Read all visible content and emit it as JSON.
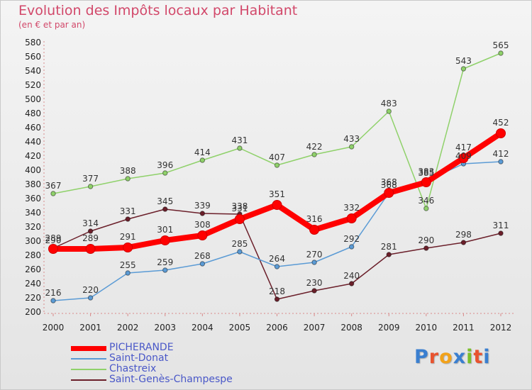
{
  "header": {
    "title": "Evolution des Impôts locaux par Habitant",
    "subtitle": "(en € et par an)"
  },
  "logo": {
    "text": "Proxiti",
    "letter_colors": [
      "#3a7fd0",
      "#e8532f",
      "#f2a21a",
      "#3a7fd0",
      "#7bbf2a",
      "#e8532f",
      "#3a7fd0"
    ]
  },
  "chart_data": {
    "type": "line",
    "title": "Evolution des Impôts locaux par Habitant",
    "subtitle": "(en € et par an)",
    "xlabel": "",
    "ylabel": "",
    "x": [
      "2000",
      "2001",
      "2002",
      "2003",
      "2004",
      "2005",
      "2006",
      "2007",
      "2008",
      "2009",
      "2010",
      "2011",
      "2012"
    ],
    "ylim": [
      200,
      580
    ],
    "ytick_step": 20,
    "grid": false,
    "legend_position": "bottom-left",
    "series": [
      {
        "name": "PICHERANDE",
        "color": "#ff0000",
        "values": [
          289,
          289,
          291,
          301,
          308,
          331,
          351,
          316,
          332,
          368,
          383,
          417,
          452
        ]
      },
      {
        "name": "Saint-Donat",
        "color": "#5b9bd5",
        "values": [
          216,
          220,
          255,
          259,
          268,
          285,
          264,
          270,
          292,
          368,
          385,
          409,
          412
        ]
      },
      {
        "name": "Chastreix",
        "color": "#8fd16a",
        "values": [
          367,
          377,
          388,
          396,
          414,
          431,
          407,
          422,
          433,
          483,
          346,
          543,
          565
        ]
      },
      {
        "name": "Saint-Genès-Champespe",
        "color": "#6b1f2a",
        "values": [
          290,
          314,
          331,
          345,
          339,
          338,
          218,
          230,
          240,
          281,
          290,
          298,
          311
        ]
      }
    ]
  }
}
